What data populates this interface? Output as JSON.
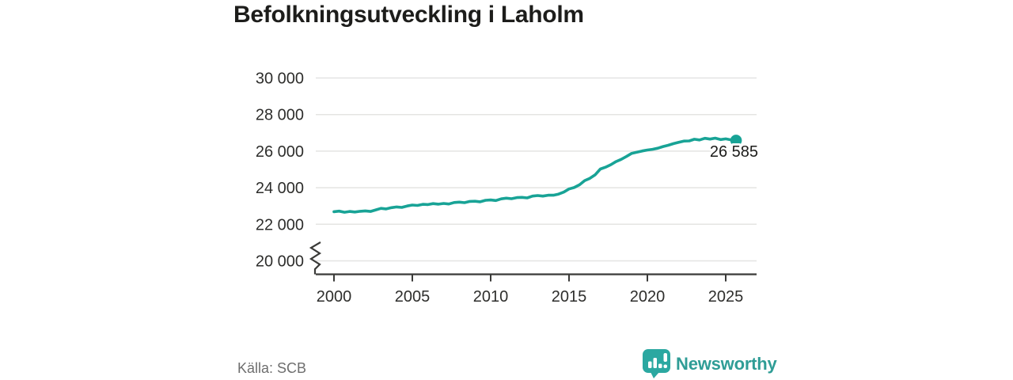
{
  "title": "Befolkningsutveckling i Laholm",
  "source": "Källa: SCB",
  "branding": {
    "name": "Newsworthy",
    "icon": "newsworthy-bubble-chart-icon",
    "text_color": "#2f9d96",
    "icon_color": "#2ba8a1"
  },
  "colors": {
    "line": "#18a396",
    "grid": "#e4e4e2",
    "axis": "#3a3a38",
    "tick_text": "#2e2e2c",
    "title_text": "#1d1d1b",
    "source_text": "#6e6e6e",
    "end_label_text": "#1c1c1a"
  },
  "chart_data": {
    "type": "line",
    "title": "Befolkningsutveckling i Laholm",
    "xlabel": "",
    "ylabel": "",
    "xlim": [
      2000,
      2026.3
    ],
    "ylim": [
      20000,
      30000
    ],
    "axis_break_at_bottom": true,
    "grid": "horizontal",
    "legend": "none",
    "x_ticks": [
      2000,
      2005,
      2010,
      2015,
      2020,
      2025
    ],
    "x_tick_labels": [
      "2000",
      "2005",
      "2010",
      "2015",
      "2020",
      "2025"
    ],
    "y_ticks": [
      20000,
      22000,
      24000,
      26000,
      28000,
      30000
    ],
    "y_tick_labels": [
      "20 000",
      "22 000",
      "24 000",
      "26 000",
      "28 000",
      "30 000"
    ],
    "end_label": "26 585",
    "end_value": 26585,
    "series": [
      {
        "name": "Befolkning i Laholm",
        "points": [
          [
            2000.0,
            22690
          ],
          [
            2000.33,
            22720
          ],
          [
            2000.67,
            22660
          ],
          [
            2001.0,
            22700
          ],
          [
            2001.33,
            22670
          ],
          [
            2001.67,
            22710
          ],
          [
            2002.0,
            22730
          ],
          [
            2002.33,
            22700
          ],
          [
            2002.67,
            22790
          ],
          [
            2003.0,
            22870
          ],
          [
            2003.33,
            22840
          ],
          [
            2003.67,
            22910
          ],
          [
            2004.0,
            22950
          ],
          [
            2004.33,
            22920
          ],
          [
            2004.67,
            23000
          ],
          [
            2005.0,
            23050
          ],
          [
            2005.33,
            23030
          ],
          [
            2005.67,
            23090
          ],
          [
            2006.0,
            23080
          ],
          [
            2006.33,
            23130
          ],
          [
            2006.67,
            23100
          ],
          [
            2007.0,
            23140
          ],
          [
            2007.33,
            23110
          ],
          [
            2007.67,
            23190
          ],
          [
            2008.0,
            23210
          ],
          [
            2008.33,
            23180
          ],
          [
            2008.67,
            23250
          ],
          [
            2009.0,
            23260
          ],
          [
            2009.33,
            23230
          ],
          [
            2009.67,
            23310
          ],
          [
            2010.0,
            23330
          ],
          [
            2010.33,
            23300
          ],
          [
            2010.67,
            23390
          ],
          [
            2011.0,
            23430
          ],
          [
            2011.33,
            23400
          ],
          [
            2011.67,
            23460
          ],
          [
            2012.0,
            23470
          ],
          [
            2012.33,
            23440
          ],
          [
            2012.67,
            23540
          ],
          [
            2013.0,
            23570
          ],
          [
            2013.33,
            23540
          ],
          [
            2013.67,
            23590
          ],
          [
            2014.0,
            23590
          ],
          [
            2014.33,
            23650
          ],
          [
            2014.67,
            23760
          ],
          [
            2015.0,
            23930
          ],
          [
            2015.33,
            24010
          ],
          [
            2015.67,
            24160
          ],
          [
            2016.0,
            24390
          ],
          [
            2016.33,
            24510
          ],
          [
            2016.67,
            24710
          ],
          [
            2017.0,
            25020
          ],
          [
            2017.33,
            25120
          ],
          [
            2017.67,
            25260
          ],
          [
            2018.0,
            25430
          ],
          [
            2018.33,
            25550
          ],
          [
            2018.67,
            25710
          ],
          [
            2019.0,
            25880
          ],
          [
            2019.33,
            25940
          ],
          [
            2019.67,
            26010
          ],
          [
            2020.0,
            26060
          ],
          [
            2020.33,
            26100
          ],
          [
            2020.67,
            26160
          ],
          [
            2021.0,
            26250
          ],
          [
            2021.33,
            26320
          ],
          [
            2021.67,
            26410
          ],
          [
            2022.0,
            26480
          ],
          [
            2022.33,
            26550
          ],
          [
            2022.67,
            26560
          ],
          [
            2023.0,
            26650
          ],
          [
            2023.33,
            26610
          ],
          [
            2023.67,
            26700
          ],
          [
            2024.0,
            26660
          ],
          [
            2024.33,
            26710
          ],
          [
            2024.67,
            26630
          ],
          [
            2025.0,
            26670
          ],
          [
            2025.33,
            26620
          ],
          [
            2025.66,
            26585
          ]
        ]
      }
    ]
  }
}
